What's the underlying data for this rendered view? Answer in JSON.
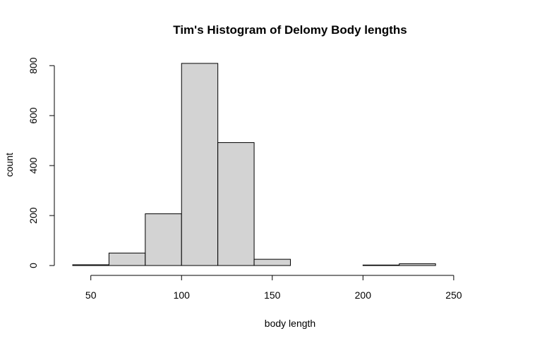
{
  "chart_data": {
    "type": "bar",
    "subtype": "histogram",
    "title": "Tim's Histogram of Delomy Body lengths",
    "xlabel": "body length",
    "ylabel": "count",
    "bins": [
      {
        "start": 40,
        "end": 60,
        "count": 3
      },
      {
        "start": 60,
        "end": 80,
        "count": 50
      },
      {
        "start": 80,
        "end": 100,
        "count": 207
      },
      {
        "start": 100,
        "end": 120,
        "count": 809
      },
      {
        "start": 120,
        "end": 140,
        "count": 492
      },
      {
        "start": 140,
        "end": 160,
        "count": 25
      },
      {
        "start": 160,
        "end": 180,
        "count": 0
      },
      {
        "start": 180,
        "end": 200,
        "count": 0
      },
      {
        "start": 200,
        "end": 220,
        "count": 2
      },
      {
        "start": 220,
        "end": 240,
        "count": 7
      },
      {
        "start": 240,
        "end": 260,
        "count": 0
      },
      {
        "start": 260,
        "end": 280,
        "count": 0
      }
    ],
    "xlim": [
      40,
      280
    ],
    "ylim": [
      0,
      809
    ],
    "x_ticks": [
      50,
      100,
      150,
      200,
      250
    ],
    "x_tick_labels": [
      "50",
      "100",
      "150",
      "200",
      "250"
    ],
    "y_ticks": [
      0,
      200,
      400,
      600,
      800
    ],
    "y_tick_labels": [
      "0",
      "200",
      "400",
      "600",
      "800"
    ],
    "bar_fill": "#d3d3d3",
    "bar_stroke": "#000000",
    "grid": false,
    "legend": "none"
  }
}
